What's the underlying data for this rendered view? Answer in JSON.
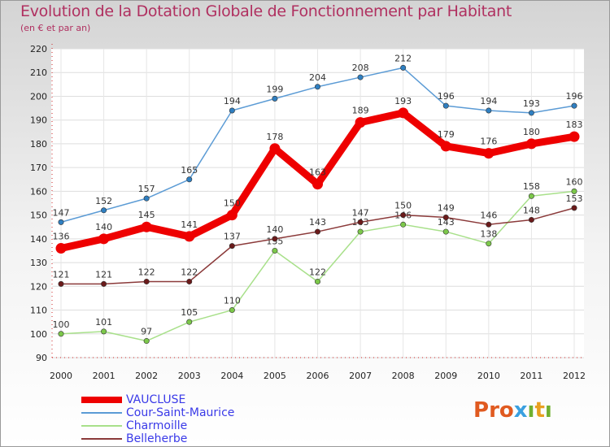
{
  "header": {
    "title": "Evolution de la Dotation Globale de Fonctionnement par Habitant",
    "subtitle": "(en € et par an)"
  },
  "logo": {
    "text": "Proxıtı",
    "colors": [
      "#e05a20",
      "#3aa0e0",
      "#70b030",
      "#e8a020"
    ]
  },
  "chart_data": {
    "type": "line",
    "title": "Evolution de la Dotation Globale de Fonctionnement par Habitant",
    "subtitle": "(en € et par an)",
    "xlabel": "",
    "ylabel": "",
    "categories": [
      "2000",
      "2001",
      "2002",
      "2003",
      "2004",
      "2005",
      "2006",
      "2007",
      "2008",
      "2009",
      "2010",
      "2011",
      "2012"
    ],
    "yticks": [
      "90",
      "100",
      "110",
      "120",
      "130",
      "140",
      "150",
      "160",
      "170",
      "180",
      "190",
      "200",
      "210",
      "220"
    ],
    "ylim": [
      90,
      220
    ],
    "grid": true,
    "legend_position": "bottom-left",
    "series": [
      {
        "name": "Cour-Saint-Maurice",
        "color": "#5b9bd5",
        "marker": "#2f7fc1",
        "values": [
          147,
          152,
          157,
          165,
          194,
          199,
          204,
          208,
          212,
          196,
          194,
          193,
          196
        ],
        "labels": [
          "147",
          "152",
          "157",
          "165",
          "194",
          "199",
          "204",
          "208",
          "212",
          "196",
          "194",
          "193",
          "196"
        ]
      },
      {
        "name": "Charmoille",
        "color": "#a8e08a",
        "marker": "#7cc84a",
        "values": [
          100,
          101,
          97,
          105,
          110,
          135,
          122,
          143,
          146,
          143,
          138,
          158,
          160
        ],
        "labels": [
          "100",
          "101",
          "97",
          "105",
          "110",
          "135",
          "122",
          "143",
          "146",
          "143",
          "138",
          "158",
          "160"
        ]
      },
      {
        "name": "Belleherbe",
        "color": "#8b3a3a",
        "marker": "#6b1a1a",
        "values": [
          121,
          121,
          122,
          122,
          137,
          140,
          143,
          147,
          150,
          149,
          146,
          148,
          153
        ],
        "labels": [
          "121",
          "121",
          "122",
          "122",
          "137",
          "140",
          "143",
          "147",
          "150",
          "149",
          "146",
          "148",
          "153"
        ]
      },
      {
        "name": "VAUCLUSE",
        "color": "#ee0000",
        "marker": "#ee0000",
        "values": [
          136,
          140,
          145,
          141,
          150,
          178,
          163,
          189,
          193,
          179,
          176,
          180,
          183
        ],
        "labels": [
          "136",
          "140",
          "145",
          "141",
          "150",
          "178",
          "163",
          "189",
          "193",
          "179",
          "176",
          "180",
          "183"
        ]
      }
    ]
  },
  "legend": {
    "items": [
      {
        "label": "VAUCLUSE",
        "color": "#ee0000"
      },
      {
        "label": "Cour-Saint-Maurice",
        "color": "#5b9bd5"
      },
      {
        "label": "Charmoille",
        "color": "#a8e08a"
      },
      {
        "label": "Belleherbe",
        "color": "#8b3a3a"
      }
    ]
  }
}
